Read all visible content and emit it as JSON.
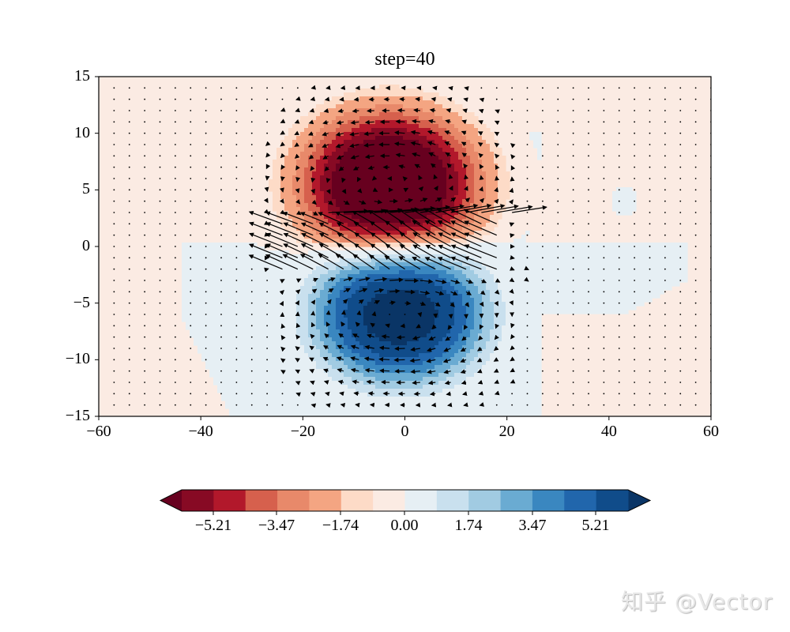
{
  "chart_data": {
    "type": "heatmap",
    "subtype": "filled-contour with quiver overlay",
    "title": "step=40",
    "xlabel": "",
    "ylabel": "",
    "xlim": [
      -60,
      60
    ],
    "ylim": [
      -15,
      15
    ],
    "xticks": [
      "−60",
      "−40",
      "−20",
      "0",
      "20",
      "40",
      "60"
    ],
    "xtick_values": [
      -60,
      -40,
      -20,
      0,
      20,
      40,
      60
    ],
    "yticks": [
      "15",
      "10",
      "5",
      "0",
      "−5",
      "−10",
      "−15"
    ],
    "ytick_values": [
      15,
      10,
      5,
      0,
      -5,
      -10,
      -15
    ],
    "grid": false,
    "colormap": "RdBu (reversed sign: red negative, blue positive)",
    "colorbar": {
      "orientation": "horizontal",
      "extend": "both",
      "ticks": [
        "−5.21",
        "−3.47",
        "−1.74",
        "0.00",
        "1.74",
        "3.47",
        "5.21"
      ],
      "tick_values": [
        -5.21,
        -3.47,
        -1.74,
        0.0,
        1.74,
        3.47,
        5.21
      ],
      "level_step": 0.868,
      "colors": [
        "#67001f",
        "#870a24",
        "#b2182b",
        "#d6604d",
        "#e8896a",
        "#f4a582",
        "#fddbc7",
        "#fbebe3",
        "#e6eff4",
        "#c9e0ee",
        "#a1cbe2",
        "#6aabd2",
        "#3a87c0",
        "#2166ac",
        "#104c8a",
        "#0a3566"
      ],
      "under_color": "#67001f",
      "over_color": "#0a3566"
    },
    "features": [
      {
        "name": "negative vortex (red)",
        "center": [
          -3,
          5.5
        ],
        "min_value": -6.0,
        "half_width_x": 18,
        "half_width_y": 6
      },
      {
        "name": "positive vortex (blue)",
        "center": [
          -1,
          -6
        ],
        "max_value": 6.0,
        "half_width_x": 18,
        "half_width_y": 6
      },
      {
        "name": "strong shear jet",
        "y_range": [
          -2.5,
          3
        ],
        "x_range": [
          -25,
          20
        ],
        "direction": "westward-upward diagonal arrows with eastward jet near y=3"
      },
      {
        "name": "weak positive anomaly",
        "center": [
          43,
          4
        ],
        "value": 0.4
      },
      {
        "name": "weak positive tongue",
        "region": "x -44..27, y -15..0"
      }
    ],
    "quiver": {
      "grid_dx": 3,
      "grid_dy": 1,
      "x_start": -57,
      "y_start": -14,
      "color": "#000000"
    }
  },
  "watermark": "知乎 @Vector"
}
